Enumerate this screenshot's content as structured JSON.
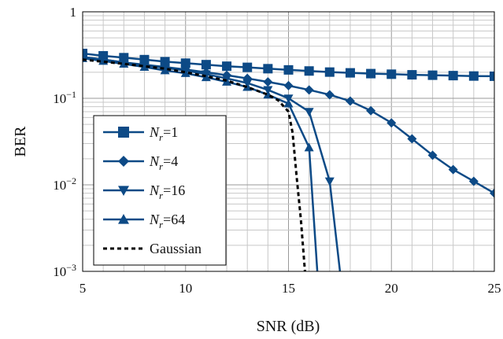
{
  "chart_data": {
    "type": "line",
    "xlabel": "SNR (dB)",
    "ylabel": "BER",
    "xlim": [
      5,
      25
    ],
    "ylim": [
      0.001,
      1
    ],
    "yscale": "log",
    "grid": true,
    "legend_position": "left",
    "x_ticks": [
      5,
      10,
      15,
      20,
      25
    ],
    "y_ticks": [
      {
        "value": 1,
        "base": "1",
        "exp": ""
      },
      {
        "value": 0.1,
        "base": "10",
        "exp": "−1"
      },
      {
        "value": 0.01,
        "base": "10",
        "exp": "−2"
      },
      {
        "value": 0.001,
        "base": "10",
        "exp": "−3"
      }
    ],
    "series": [
      {
        "name": "N_r=1",
        "legend_var": "N",
        "legend_sub": "r",
        "legend_rest": "=1",
        "marker": "square",
        "color": "#0d4a86",
        "dash": "",
        "x": [
          5,
          6,
          7,
          8,
          9,
          10,
          11,
          12,
          13,
          14,
          15,
          16,
          17,
          18,
          19,
          20,
          21,
          22,
          23,
          24,
          25
        ],
        "y": [
          0.33,
          0.31,
          0.295,
          0.28,
          0.265,
          0.255,
          0.245,
          0.235,
          0.228,
          0.22,
          0.213,
          0.207,
          0.201,
          0.197,
          0.193,
          0.19,
          0.187,
          0.185,
          0.183,
          0.181,
          0.18
        ]
      },
      {
        "name": "N_r=4",
        "legend_var": "N",
        "legend_sub": "r",
        "legend_rest": "=4",
        "marker": "diamond",
        "color": "#0d4a86",
        "dash": "",
        "x": [
          5,
          6,
          7,
          8,
          9,
          10,
          11,
          12,
          13,
          14,
          15,
          16,
          17,
          18,
          19,
          20,
          21,
          22,
          23,
          24,
          25
        ],
        "y": [
          0.3,
          0.28,
          0.26,
          0.245,
          0.23,
          0.215,
          0.2,
          0.185,
          0.17,
          0.155,
          0.14,
          0.125,
          0.11,
          0.093,
          0.072,
          0.052,
          0.034,
          0.022,
          0.015,
          0.011,
          0.008
        ]
      },
      {
        "name": "N_r=16",
        "legend_var": "N",
        "legend_sub": "r",
        "legend_rest": "=16",
        "marker": "triangle-down",
        "color": "#0d4a86",
        "dash": "",
        "x": [
          5,
          6,
          7,
          8,
          9,
          10,
          11,
          12,
          13,
          14,
          15,
          16,
          17,
          17.5
        ],
        "y": [
          0.3,
          0.28,
          0.26,
          0.24,
          0.225,
          0.21,
          0.19,
          0.17,
          0.15,
          0.125,
          0.1,
          0.07,
          0.011,
          0.001
        ]
      },
      {
        "name": "N_r=64",
        "legend_var": "N",
        "legend_sub": "r",
        "legend_rest": "=64",
        "marker": "triangle-up",
        "color": "#0d4a86",
        "dash": "",
        "x": [
          5,
          6,
          7,
          8,
          9,
          10,
          11,
          12,
          13,
          14,
          15,
          16,
          16.4
        ],
        "y": [
          0.29,
          0.27,
          0.25,
          0.23,
          0.21,
          0.195,
          0.175,
          0.155,
          0.135,
          0.11,
          0.087,
          0.027,
          0.001
        ]
      },
      {
        "name": "Gaussian",
        "legend_var": "",
        "legend_sub": "",
        "legend_rest": "Gaussian",
        "marker": "none",
        "color": "#000000",
        "dash": "5,4",
        "x": [
          5,
          6,
          7,
          8,
          9,
          10,
          11,
          12,
          13,
          14,
          14.5,
          15,
          15.2,
          15.4,
          15.6,
          15.8
        ],
        "y": [
          0.28,
          0.265,
          0.25,
          0.235,
          0.22,
          0.2,
          0.18,
          0.16,
          0.135,
          0.11,
          0.095,
          0.07,
          0.04,
          0.012,
          0.004,
          0.001
        ]
      }
    ]
  }
}
